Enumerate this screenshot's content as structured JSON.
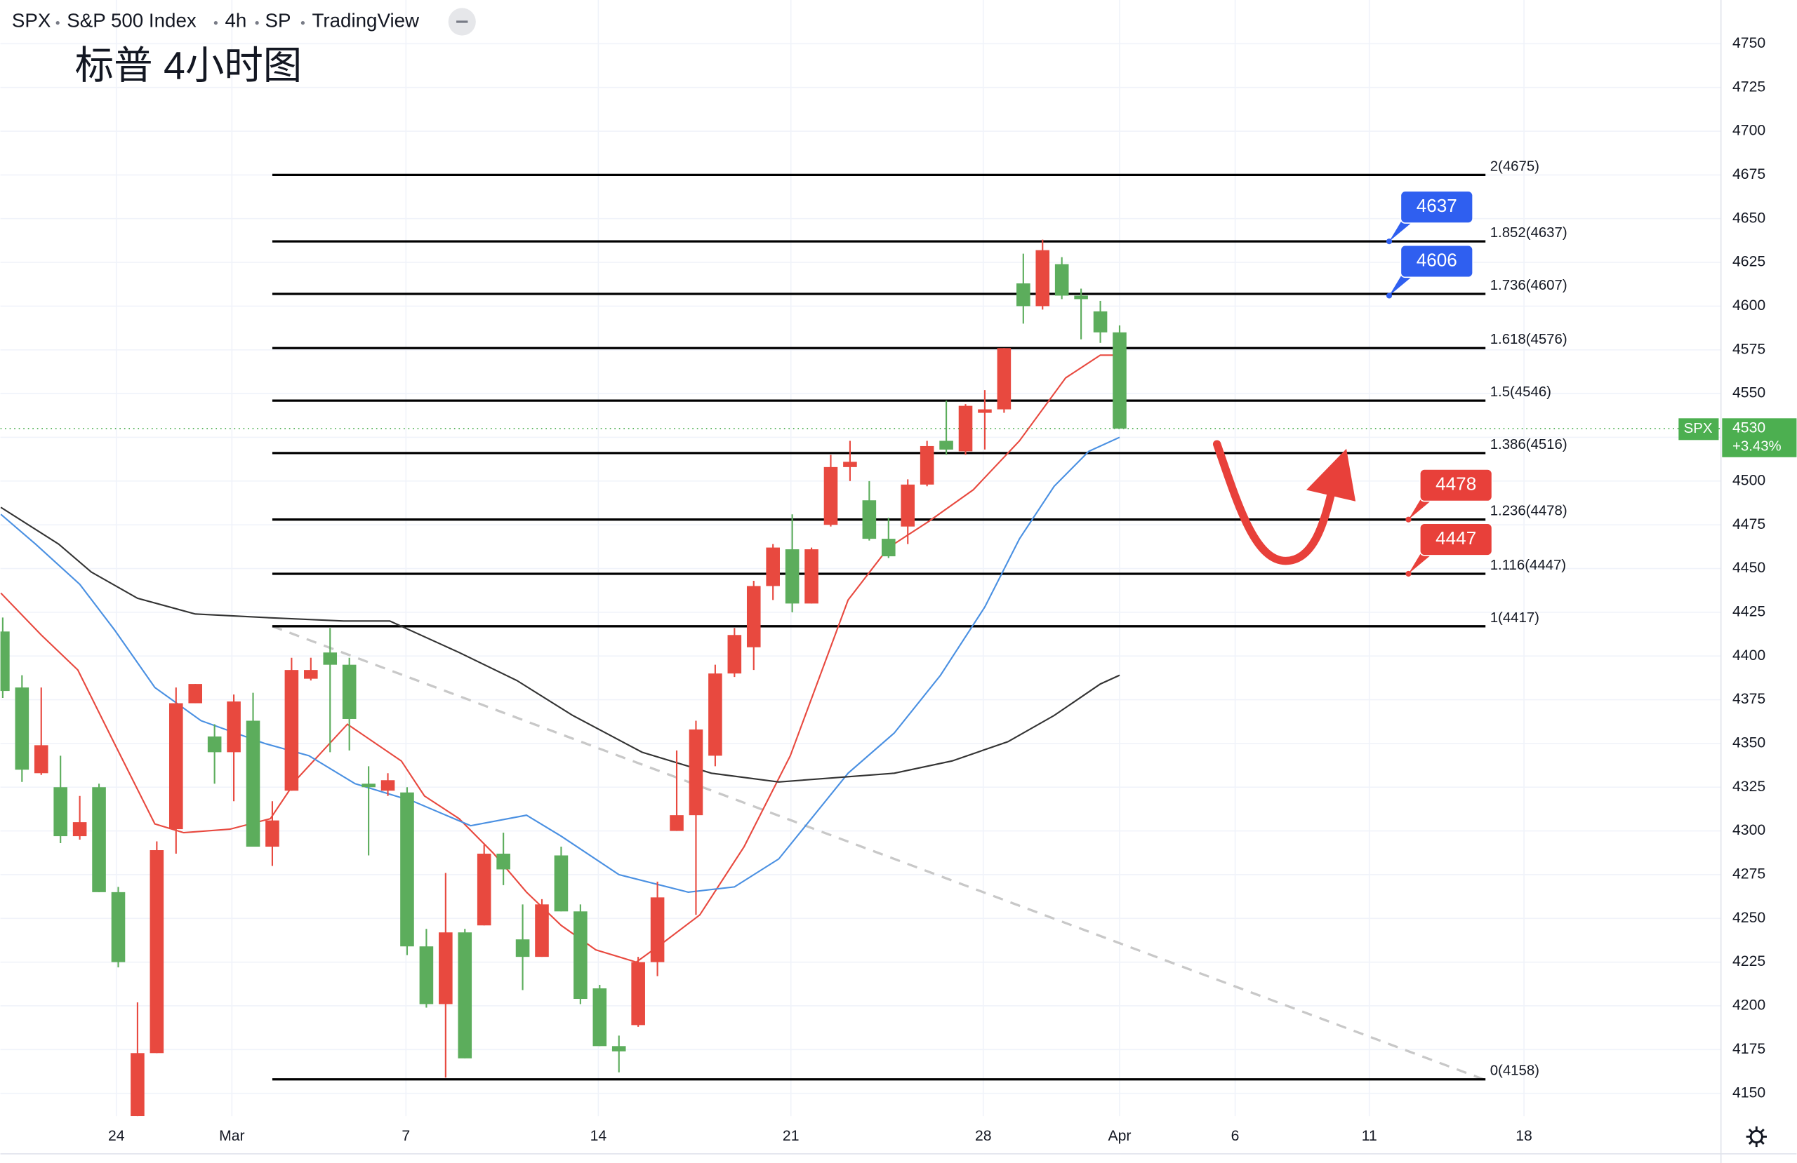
{
  "chart_data": {
    "type": "candlestick",
    "header": {
      "symbol": "SPX",
      "name": "S&P 500 Index",
      "interval": "4h",
      "exchange": "SP",
      "source": "TradingView"
    },
    "title": "标普 4小时图",
    "up_color": "#e8493f",
    "down_color": "#5cad5c",
    "ohlc": [
      [
        4414,
        4422,
        4376,
        4380
      ],
      [
        4382,
        4389,
        4328,
        4335
      ],
      [
        4333,
        4382,
        4332,
        4349
      ],
      [
        4325,
        4343,
        4293,
        4297
      ],
      [
        4297,
        4320,
        4295,
        4305
      ],
      [
        4325,
        4327,
        4265,
        4265
      ],
      [
        4265,
        4268,
        4222,
        4225
      ],
      [
        4137,
        4202,
        4135,
        4173
      ],
      [
        4173,
        4294,
        4173,
        4289
      ],
      [
        4301,
        4382,
        4287,
        4373
      ],
      [
        4373,
        4384,
        4373,
        4384
      ],
      [
        4354,
        4361,
        4327,
        4345
      ],
      [
        4345,
        4378,
        4317,
        4374
      ],
      [
        4363,
        4379,
        4291,
        4291
      ],
      [
        4291,
        4317,
        4280,
        4306
      ],
      [
        4323,
        4399,
        4323,
        4392
      ],
      [
        4387,
        4399,
        4386,
        4392
      ],
      [
        4402,
        4416,
        4345,
        4395
      ],
      [
        4395,
        4399,
        4346,
        4364
      ],
      [
        4327,
        4337,
        4286,
        4325
      ],
      [
        4323,
        4333,
        4320,
        4329
      ],
      [
        4322,
        4325,
        4229,
        4234
      ],
      [
        4234,
        4244,
        4199,
        4201
      ],
      [
        4201,
        4276,
        4159,
        4242
      ],
      [
        4242,
        4244,
        4170,
        4170
      ],
      [
        4246,
        4292,
        4246,
        4287
      ],
      [
        4287,
        4299,
        4269,
        4278
      ],
      [
        4238,
        4258,
        4209,
        4228
      ],
      [
        4228,
        4261,
        4228,
        4258
      ],
      [
        4286,
        4291,
        4254,
        4254
      ],
      [
        4254,
        4258,
        4201,
        4204
      ],
      [
        4210,
        4212,
        4177,
        4177
      ],
      [
        4177,
        4183,
        4162,
        4174
      ],
      [
        4189,
        4228,
        4188,
        4225
      ],
      [
        4225,
        4271,
        4217,
        4262
      ],
      [
        4300,
        4346,
        4300,
        4309
      ],
      [
        4309,
        4363,
        4252,
        4358
      ],
      [
        4343,
        4395,
        4337,
        4390
      ],
      [
        4390,
        4416,
        4388,
        4412
      ],
      [
        4405,
        4443,
        4392,
        4440
      ],
      [
        4440,
        4464,
        4432,
        4462
      ],
      [
        4461,
        4481,
        4425,
        4430
      ],
      [
        4430,
        4462,
        4430,
        4461
      ],
      [
        4475,
        4515,
        4474,
        4508
      ],
      [
        4508,
        4523,
        4500,
        4511
      ],
      [
        4489,
        4500,
        4466,
        4467
      ],
      [
        4467,
        4479,
        4456,
        4457
      ],
      [
        4474,
        4501,
        4464,
        4498
      ],
      [
        4498,
        4523,
        4497,
        4520
      ],
      [
        4523,
        4546,
        4515,
        4518
      ],
      [
        4517,
        4544,
        4515,
        4543
      ],
      [
        4539,
        4552,
        4518,
        4541
      ],
      [
        4541,
        4576,
        4539,
        4576
      ],
      [
        4613,
        4630,
        4590,
        4600
      ],
      [
        4600,
        4638,
        4598,
        4632
      ],
      [
        4624,
        4628,
        4604,
        4606
      ],
      [
        4606,
        4610,
        4581,
        4604
      ],
      [
        4597,
        4603,
        4579,
        4585
      ],
      [
        4585,
        4589,
        4530,
        4530
      ]
    ],
    "moving_averages": [
      {
        "color": "#e8493f",
        "x": [
          -0.1,
          2.0,
          3.9,
          5.8,
          7.9,
          9.4,
          11.8,
          13.9,
          15.3,
          17.9,
          20.7,
          21.9,
          23.7,
          25.5,
          27.2,
          29.0,
          30.8,
          32.9,
          34.4,
          36.2,
          38.5,
          40.9,
          43.9,
          46.0,
          48.1,
          50.4,
          52.8,
          55.2,
          57.0,
          58.0
        ],
        "values": [
          4436,
          4412,
          4392,
          4350,
          4304,
          4299,
          4301,
          4307,
          4330,
          4361,
          4340,
          4320,
          4307,
          4287,
          4265,
          4246,
          4232,
          4225,
          4237,
          4252,
          4291,
          4343,
          4432,
          4462,
          4477,
          4495,
          4523,
          4559,
          4572,
          4572
        ]
      },
      {
        "color": "#4a90e2",
        "x": [
          -0.1,
          1.7,
          4.0,
          5.8,
          7.9,
          10.3,
          13.6,
          15.9,
          18.3,
          21.3,
          24.3,
          27.2,
          29.0,
          32.0,
          35.6,
          38.0,
          40.3,
          43.9,
          46.3,
          48.7,
          51.0,
          52.8,
          54.6,
          56.4,
          58.0
        ],
        "values": [
          4481,
          4464,
          4441,
          4415,
          4382,
          4363,
          4350,
          4343,
          4327,
          4317,
          4303,
          4309,
          4297,
          4275,
          4265,
          4268,
          4284,
          4333,
          4356,
          4389,
          4428,
          4467,
          4497,
          4517,
          4525
        ]
      },
      {
        "color": "#333333",
        "x": [
          -0.1,
          2.9,
          4.6,
          7.0,
          10.0,
          13.6,
          17.7,
          20.1,
          23.7,
          26.7,
          29.6,
          33.2,
          36.8,
          40.3,
          42.7,
          46.3,
          49.3,
          52.2,
          54.6,
          57.0,
          58.0
        ],
        "values": [
          4485,
          4464,
          4448,
          4433,
          4424,
          4422,
          4420,
          4420,
          4402,
          4386,
          4366,
          4345,
          4333,
          4328,
          4330,
          4333,
          4340,
          4351,
          4366,
          4384,
          4389
        ]
      }
    ],
    "trendline": {
      "x": [
        14.0,
        76.9
      ],
      "values": [
        4417,
        4158
      ],
      "color": "#c8c8c8"
    },
    "fib": {
      "x": [
        14.0,
        77.0
      ],
      "levels": [
        {
          "value": 4675,
          "label": "2(4675)"
        },
        {
          "value": 4637,
          "label": "1.852(4637)"
        },
        {
          "value": 4607,
          "label": "1.736(4607)"
        },
        {
          "value": 4576,
          "label": "1.618(4576)"
        },
        {
          "value": 4546,
          "label": "1.5(4546)"
        },
        {
          "value": 4516,
          "label": "1.386(4516)"
        },
        {
          "value": 4478,
          "label": "1.236(4478)"
        },
        {
          "value": 4447,
          "label": "1.116(4447)"
        },
        {
          "value": 4417,
          "label": "1(4417)"
        },
        {
          "value": 4158,
          "label": "0(4158)"
        }
      ]
    },
    "callouts": [
      {
        "x": 72.0,
        "value": 4637,
        "color": "#2f5ff0"
      },
      {
        "x": 72.0,
        "value": 4606,
        "color": "#2f5ff0"
      },
      {
        "x": 73.0,
        "value": 4478,
        "color": "#e8403a"
      },
      {
        "x": 73.0,
        "value": 4447,
        "color": "#e8403a"
      }
    ],
    "last_price": {
      "symbol": "SPX",
      "value": 4530,
      "change": "+3.43%",
      "color": "#4caf50"
    },
    "xlim": [
      -0.12,
      89.23
    ],
    "xticks": [
      {
        "value": 5.9,
        "label": "24"
      },
      {
        "value": 11.9,
        "label": "Mar"
      },
      {
        "value": 20.94,
        "label": "7"
      },
      {
        "value": 30.93,
        "label": "14"
      },
      {
        "value": 40.93,
        "label": "21"
      },
      {
        "value": 50.92,
        "label": "28"
      },
      {
        "value": 58.0,
        "label": "Apr"
      },
      {
        "value": 64.0,
        "label": "6"
      },
      {
        "value": 70.97,
        "label": "11"
      },
      {
        "value": 79.0,
        "label": "18"
      }
    ],
    "ylim": [
      4137,
      4775
    ],
    "yticks": [
      4150,
      4175,
      4200,
      4225,
      4250,
      4275,
      4300,
      4325,
      4350,
      4375,
      4400,
      4425,
      4450,
      4475,
      4500,
      4525,
      4550,
      4575,
      4600,
      4625,
      4650,
      4675,
      4700,
      4725,
      4750
    ],
    "grid": true
  }
}
